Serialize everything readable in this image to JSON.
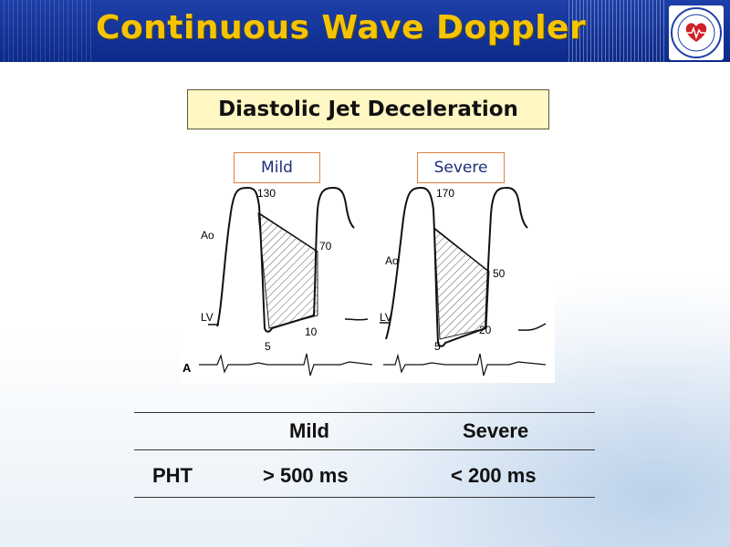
{
  "header": {
    "title": "Continuous Wave Doppler"
  },
  "subtitle": "Diastolic Jet Deceleration",
  "figure": {
    "tags": {
      "mild": "Mild",
      "severe": "Severe"
    },
    "panel_mild": {
      "peak": "130",
      "end": "70",
      "low_left": "5",
      "low_right": "10",
      "ao": "Ao",
      "lv": "LV"
    },
    "panel_severe": {
      "peak": "170",
      "end": "50",
      "low_left": "5",
      "low_right": "20",
      "ao": "Ao",
      "lv": "LV"
    },
    "panel_letter": "A"
  },
  "table": {
    "headers": [
      "",
      "Mild",
      "Severe"
    ],
    "rows": [
      {
        "label": "PHT",
        "mild": "> 500 ms",
        "severe": "< 200 ms"
      }
    ]
  },
  "colors": {
    "header_bg": "#0c2a8a",
    "title": "#f5c400",
    "subtitle_bg": "#fff7c4",
    "tag_border": "#e08040"
  }
}
